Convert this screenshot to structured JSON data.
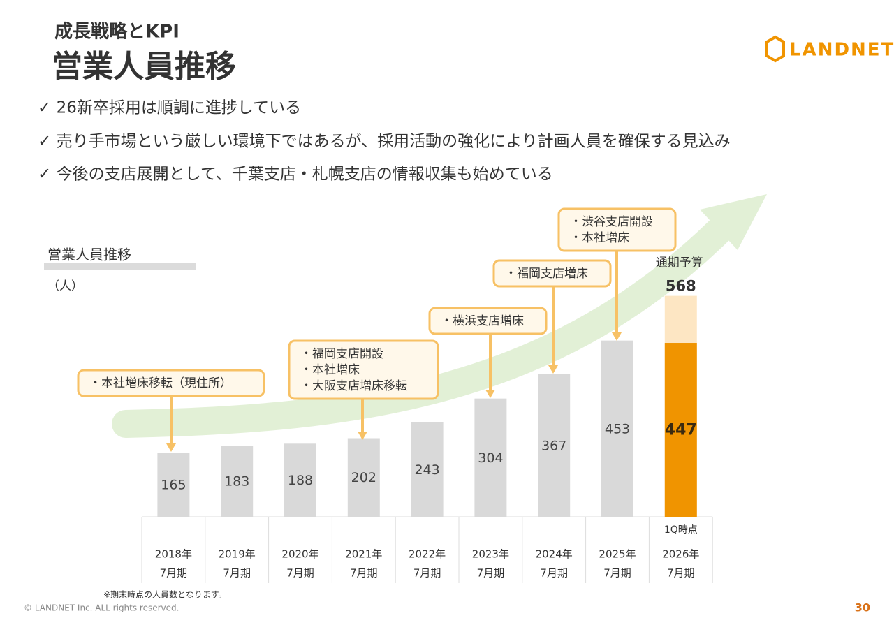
{
  "header": {
    "section": "成長戦略とKPI",
    "title": "営業人員推移"
  },
  "bullets": [
    "✓ 26新卒採用は順調に進捗している",
    "✓ 売り手市場という厳しい環境下ではあるが、採用活動の強化により計画人員を確保する見込み",
    "✓ 今後の支店展開として、千葉支店・札幌支店の情報収集も始めている"
  ],
  "logo": "LANDNET",
  "chart_data": {
    "type": "bar",
    "title": "営業人員推移",
    "unit_label": "（人）",
    "categories": [
      [
        "2018年",
        "7月期"
      ],
      [
        "2019年",
        "7月期"
      ],
      [
        "2020年",
        "7月期"
      ],
      [
        "2021年",
        "7月期"
      ],
      [
        "2022年",
        "7月期"
      ],
      [
        "2023年",
        "7月期"
      ],
      [
        "2024年",
        "7月期"
      ],
      [
        "2025年",
        "7月期"
      ],
      [
        "2026年",
        "7月期"
      ]
    ],
    "values": [
      165,
      183,
      188,
      202,
      243,
      304,
      367,
      453,
      447
    ],
    "color": "#d9d9d9",
    "highlight_color": "#f09400",
    "highlight_note": "1Q時点",
    "budget": {
      "name": "通期予算",
      "value": 568,
      "color": "#fde6c3"
    },
    "annotations": [
      [
        "・本社増床移転（現住所）"
      ],
      [
        "・福岡支店開設",
        "・本社増床",
        "・大阪支店増床移転"
      ],
      [
        "・横浜支店増床"
      ],
      [
        "・福岡支店増床"
      ],
      [
        "・渋谷支店開設",
        "・本社増床"
      ]
    ],
    "footnote": "※期末時点の人員数となります。"
  },
  "footer": {
    "copyright": "© LANDNET Inc. ALL rights reserved.",
    "page": "30"
  }
}
